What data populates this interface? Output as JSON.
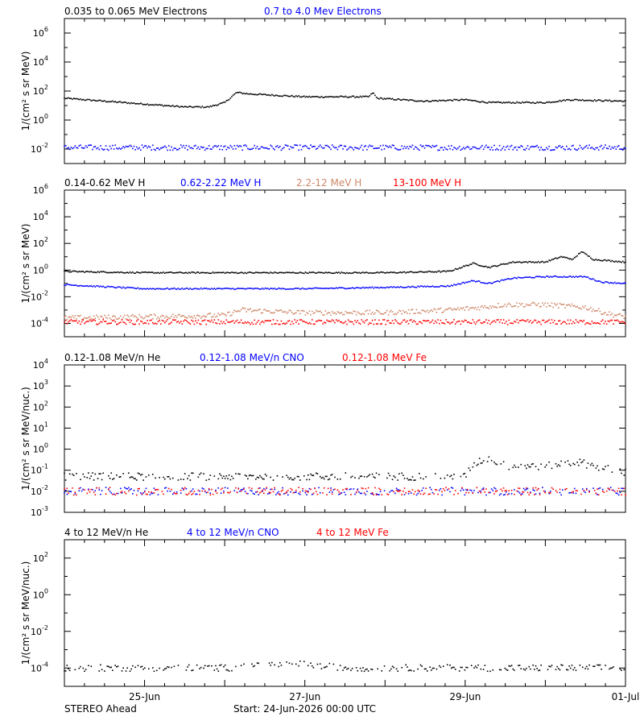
{
  "footer": {
    "spacecraft": "STEREO Ahead",
    "start": "Start: 24-Jun-2026 00:00 UTC"
  },
  "x_ticks": [
    "25-Jun",
    "27-Jun",
    "29-Jun",
    "01-Jul"
  ],
  "chart_data": [
    {
      "type": "scatter",
      "yscale": "log",
      "ylabel": "1/(cm² s sr MeV)",
      "ylim_exp": [
        -3,
        7
      ],
      "ytick_exponents": [
        -2,
        0,
        2,
        4,
        6
      ],
      "xlim_days": [
        0,
        7
      ],
      "series": [
        {
          "name": "0.035 to 0.065 MeV Electrons",
          "color": "#000000",
          "log10_points": [
            [
              0.0,
              1.5
            ],
            [
              0.5,
              1.3
            ],
            [
              1.0,
              1.1
            ],
            [
              1.5,
              0.9
            ],
            [
              1.8,
              0.9
            ],
            [
              2.0,
              1.2
            ],
            [
              2.15,
              1.9
            ],
            [
              2.3,
              1.8
            ],
            [
              3.0,
              1.6
            ],
            [
              3.8,
              1.6
            ],
            [
              3.85,
              1.9
            ],
            [
              3.9,
              1.5
            ],
            [
              4.5,
              1.3
            ],
            [
              5.0,
              1.4
            ],
            [
              5.3,
              1.2
            ],
            [
              6.0,
              1.2
            ],
            [
              6.3,
              1.4
            ],
            [
              7.0,
              1.3
            ]
          ]
        },
        {
          "name": "0.7 to 4.0 Mev Electrons",
          "color": "#0000ff",
          "log10_points": [
            [
              0.0,
              -1.9
            ],
            [
              7.0,
              -1.9
            ]
          ]
        }
      ]
    },
    {
      "type": "scatter",
      "yscale": "log",
      "ylabel": "1/(cm² s sr MeV)",
      "ylim_exp": [
        -5,
        6
      ],
      "ytick_exponents": [
        -4,
        -2,
        0,
        2,
        4,
        6
      ],
      "xlim_days": [
        0,
        7
      ],
      "series": [
        {
          "name": "0.14-0.62 MeV H",
          "color": "#000000",
          "log10_points": [
            [
              0.0,
              -0.1
            ],
            [
              1.0,
              -0.2
            ],
            [
              2.0,
              -0.2
            ],
            [
              3.0,
              -0.2
            ],
            [
              4.0,
              -0.2
            ],
            [
              4.8,
              -0.1
            ],
            [
              5.1,
              0.5
            ],
            [
              5.3,
              0.2
            ],
            [
              5.6,
              0.6
            ],
            [
              6.0,
              0.6
            ],
            [
              6.2,
              1.0
            ],
            [
              6.35,
              0.8
            ],
            [
              6.45,
              1.4
            ],
            [
              6.6,
              0.8
            ],
            [
              7.0,
              0.6
            ]
          ]
        },
        {
          "name": "0.62-2.22 MeV H",
          "color": "#0000ff",
          "log10_points": [
            [
              0.0,
              -1.1
            ],
            [
              1.0,
              -1.4
            ],
            [
              2.0,
              -1.4
            ],
            [
              3.0,
              -1.4
            ],
            [
              4.0,
              -1.3
            ],
            [
              4.8,
              -1.2
            ],
            [
              5.1,
              -0.8
            ],
            [
              5.3,
              -1.0
            ],
            [
              5.6,
              -0.6
            ],
            [
              6.0,
              -0.5
            ],
            [
              6.5,
              -0.5
            ],
            [
              6.7,
              -0.9
            ],
            [
              7.0,
              -1.0
            ]
          ]
        },
        {
          "name": "2.2-12 MeV H",
          "color": "#cd8766",
          "log10_points": [
            [
              0.0,
              -3.6
            ],
            [
              2.0,
              -3.4
            ],
            [
              2.2,
              -3.0
            ],
            [
              3.0,
              -3.2
            ],
            [
              4.0,
              -3.2
            ],
            [
              4.8,
              -3.0
            ],
            [
              5.2,
              -2.8
            ],
            [
              5.5,
              -2.6
            ],
            [
              6.0,
              -2.6
            ],
            [
              6.5,
              -2.8
            ],
            [
              6.8,
              -3.3
            ],
            [
              7.0,
              -3.5
            ]
          ]
        },
        {
          "name": "13-100 MeV H",
          "color": "#ff0000",
          "log10_points": [
            [
              0.0,
              -3.9
            ],
            [
              7.0,
              -3.9
            ]
          ]
        }
      ]
    },
    {
      "type": "scatter",
      "yscale": "log",
      "ylabel": "1/(cm² s sr MeV/nuc.)",
      "ylim_exp": [
        -3,
        4
      ],
      "ytick_exponents": [
        -3,
        -2,
        -1,
        0,
        1,
        2,
        3,
        4
      ],
      "xlim_days": [
        0,
        7
      ],
      "series": [
        {
          "name": "0.12-1.08 MeV/n He",
          "color": "#000000",
          "log10_points": [
            [
              0.0,
              -1.3
            ],
            [
              5.0,
              -1.3
            ],
            [
              5.1,
              -0.7
            ],
            [
              5.3,
              -0.4
            ],
            [
              5.5,
              -0.8
            ],
            [
              6.0,
              -0.8
            ],
            [
              6.4,
              -0.6
            ],
            [
              6.6,
              -0.8
            ],
            [
              7.0,
              -1.1
            ]
          ]
        },
        {
          "name": "0.12-1.08 MeV/n CNO",
          "color": "#0000ff",
          "log10_points": [
            [
              0.0,
              -2.0
            ],
            [
              7.0,
              -2.0
            ]
          ]
        },
        {
          "name": "0.12-1.08 MeV Fe",
          "color": "#ff0000",
          "log10_points": [
            [
              0.0,
              -2.0
            ],
            [
              7.0,
              -2.0
            ]
          ]
        }
      ]
    },
    {
      "type": "scatter",
      "yscale": "log",
      "ylabel": "1/(cm² s sr MeV/nuc.)",
      "ylim_exp": [
        -5,
        3
      ],
      "ytick_exponents": [
        -4,
        -2,
        0,
        2
      ],
      "xlim_days": [
        0,
        7
      ],
      "series": [
        {
          "name": "4 to 12 MeV/n He",
          "color": "#000000",
          "log10_points": [
            [
              0.0,
              -4.0
            ],
            [
              2.1,
              -4.0
            ],
            [
              2.2,
              -3.8
            ],
            [
              3.0,
              -3.8
            ],
            [
              3.5,
              -4.0
            ],
            [
              7.0,
              -4.0
            ]
          ]
        },
        {
          "name": "4 to 12 MeV/n CNO",
          "color": "#0000ff",
          "log10_points": []
        },
        {
          "name": "4 to 12 MeV Fe",
          "color": "#ff0000",
          "log10_points": []
        }
      ]
    }
  ]
}
